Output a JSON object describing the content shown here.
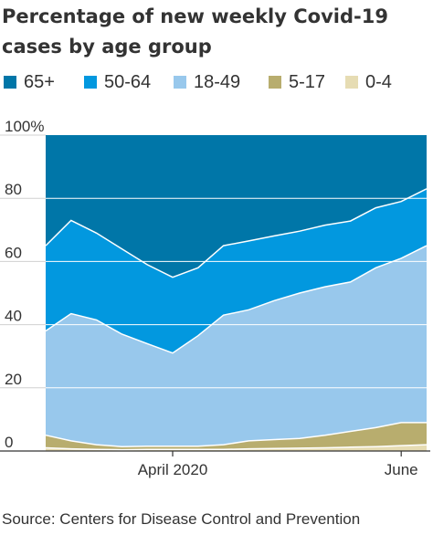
{
  "chart_data": {
    "type": "area",
    "stacking": "percent",
    "title": "Percentage of new weekly Covid-19 cases by age group",
    "source": "Source: Centers for Disease Control and Prevention",
    "xlabel": "",
    "ylabel": "",
    "ylim": [
      0,
      100
    ],
    "y_ticks": [
      "100%",
      "80",
      "60",
      "40",
      "20",
      "0"
    ],
    "x_tick_labels": [
      "April 2020",
      "June"
    ],
    "grid": true,
    "legend_position": "top",
    "x": [
      "2020-03-01",
      "2020-03-08",
      "2020-03-15",
      "2020-03-22",
      "2020-03-29",
      "2020-04-05",
      "2020-04-12",
      "2020-04-19",
      "2020-04-26",
      "2020-05-03",
      "2020-05-10",
      "2020-05-17",
      "2020-05-24",
      "2020-05-31",
      "2020-06-07",
      "2020-06-14"
    ],
    "series": [
      {
        "name": "0-4",
        "color": "#e6dcb3",
        "values": [
          1.0,
          0.7,
          0.5,
          0.4,
          0.5,
          0.5,
          0.5,
          0.5,
          0.7,
          0.8,
          0.9,
          1.0,
          1.2,
          1.4,
          1.7,
          2.0
        ]
      },
      {
        "name": "5-17",
        "color": "#b8ad6e",
        "values": [
          4.0,
          2.5,
          1.5,
          1.0,
          1.0,
          1.0,
          1.0,
          1.5,
          2.5,
          2.8,
          3.1,
          4.0,
          5.0,
          6.0,
          7.3,
          7.0
        ]
      },
      {
        "name": "18-49",
        "color": "#98c8ec",
        "values": [
          33.0,
          40.3,
          39.5,
          35.6,
          32.5,
          29.5,
          35.0,
          41.0,
          41.5,
          44.0,
          46.0,
          47.0,
          47.3,
          50.6,
          52.0,
          56.0
        ]
      },
      {
        "name": "50-64",
        "color": "#0298df",
        "values": [
          27.0,
          29.5,
          27.5,
          27.0,
          25.0,
          24.0,
          21.5,
          22.0,
          21.8,
          20.5,
          19.6,
          19.5,
          19.3,
          19.0,
          18.0,
          18.0
        ]
      },
      {
        "name": "65+",
        "color": "#0076a8",
        "values": [
          35.0,
          27.0,
          31.0,
          36.0,
          41.0,
          45.0,
          42.0,
          35.0,
          33.5,
          31.9,
          30.4,
          28.5,
          27.2,
          23.0,
          21.0,
          17.0
        ]
      }
    ]
  }
}
